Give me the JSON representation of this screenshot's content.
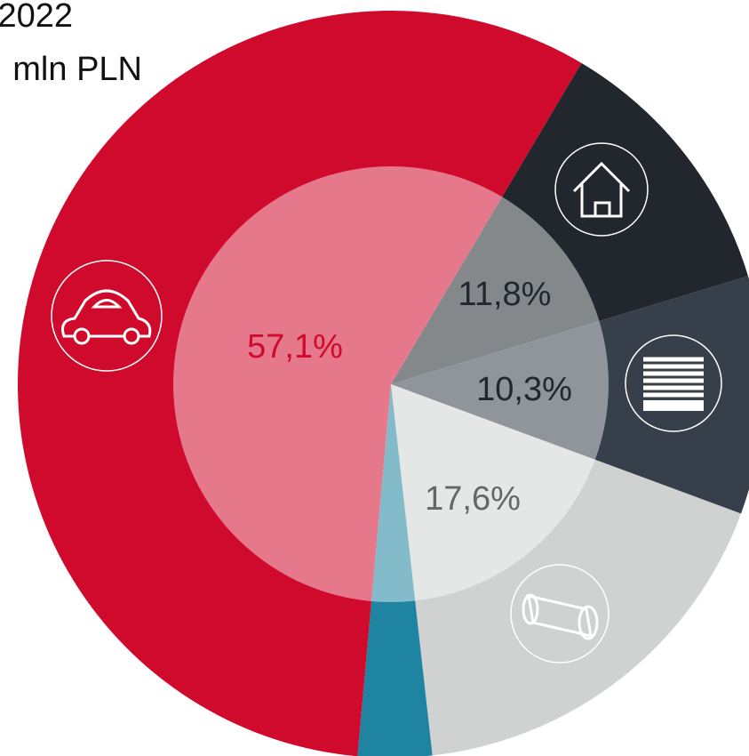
{
  "chart_data": {
    "type": "pie",
    "title": "2022",
    "subtitle": "mln PLN",
    "values": [
      11.8,
      10.3,
      17.6,
      3.2,
      57.1
    ],
    "value_labels": [
      "11,8%",
      "10,3%",
      "17,6%",
      null,
      "57,1%"
    ],
    "colors": [
      "#22272d",
      "#363f4a",
      "#d0d1d1",
      "#1f84a1",
      "#cf0a2c"
    ]
  }
}
